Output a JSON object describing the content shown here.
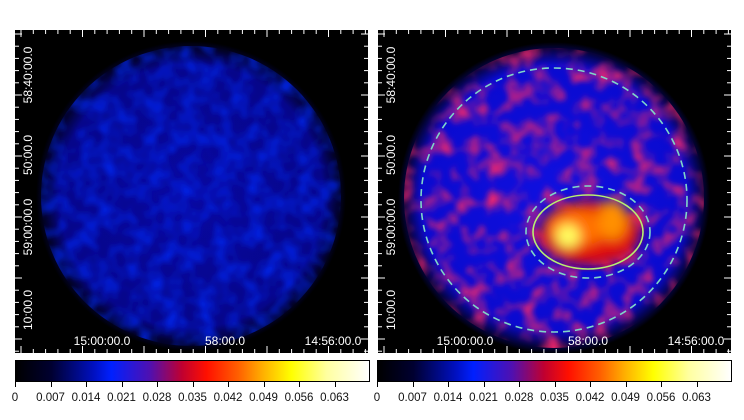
{
  "panels": [
    {
      "y_labels": [
        "58:40:00.0",
        "50:00.0",
        "59:00:00.0",
        "10:00.0"
      ],
      "x_labels": [
        "15:00:00.0",
        "58:00.0",
        "14:56:00.0"
      ],
      "regions": false
    },
    {
      "y_labels": [
        "58:40:00.0",
        "50:00.0",
        "59:00:00.0",
        "10:00.0"
      ],
      "x_labels": [
        "15:00:00.0",
        "58:00.0",
        "14:56:00.0"
      ],
      "regions": true
    }
  ],
  "colorbar": {
    "labels": [
      "0",
      "0.007",
      "0.014",
      "0.021",
      "0.028",
      "0.035",
      "0.042",
      "0.049",
      "0.056",
      "0.063"
    ],
    "range": [
      0,
      0.07
    ],
    "colormap": "heat (black-blue-red-yellow-white)"
  },
  "region_colors": {
    "dashed": "#7fd6c8",
    "solid": "#b8f070"
  }
}
